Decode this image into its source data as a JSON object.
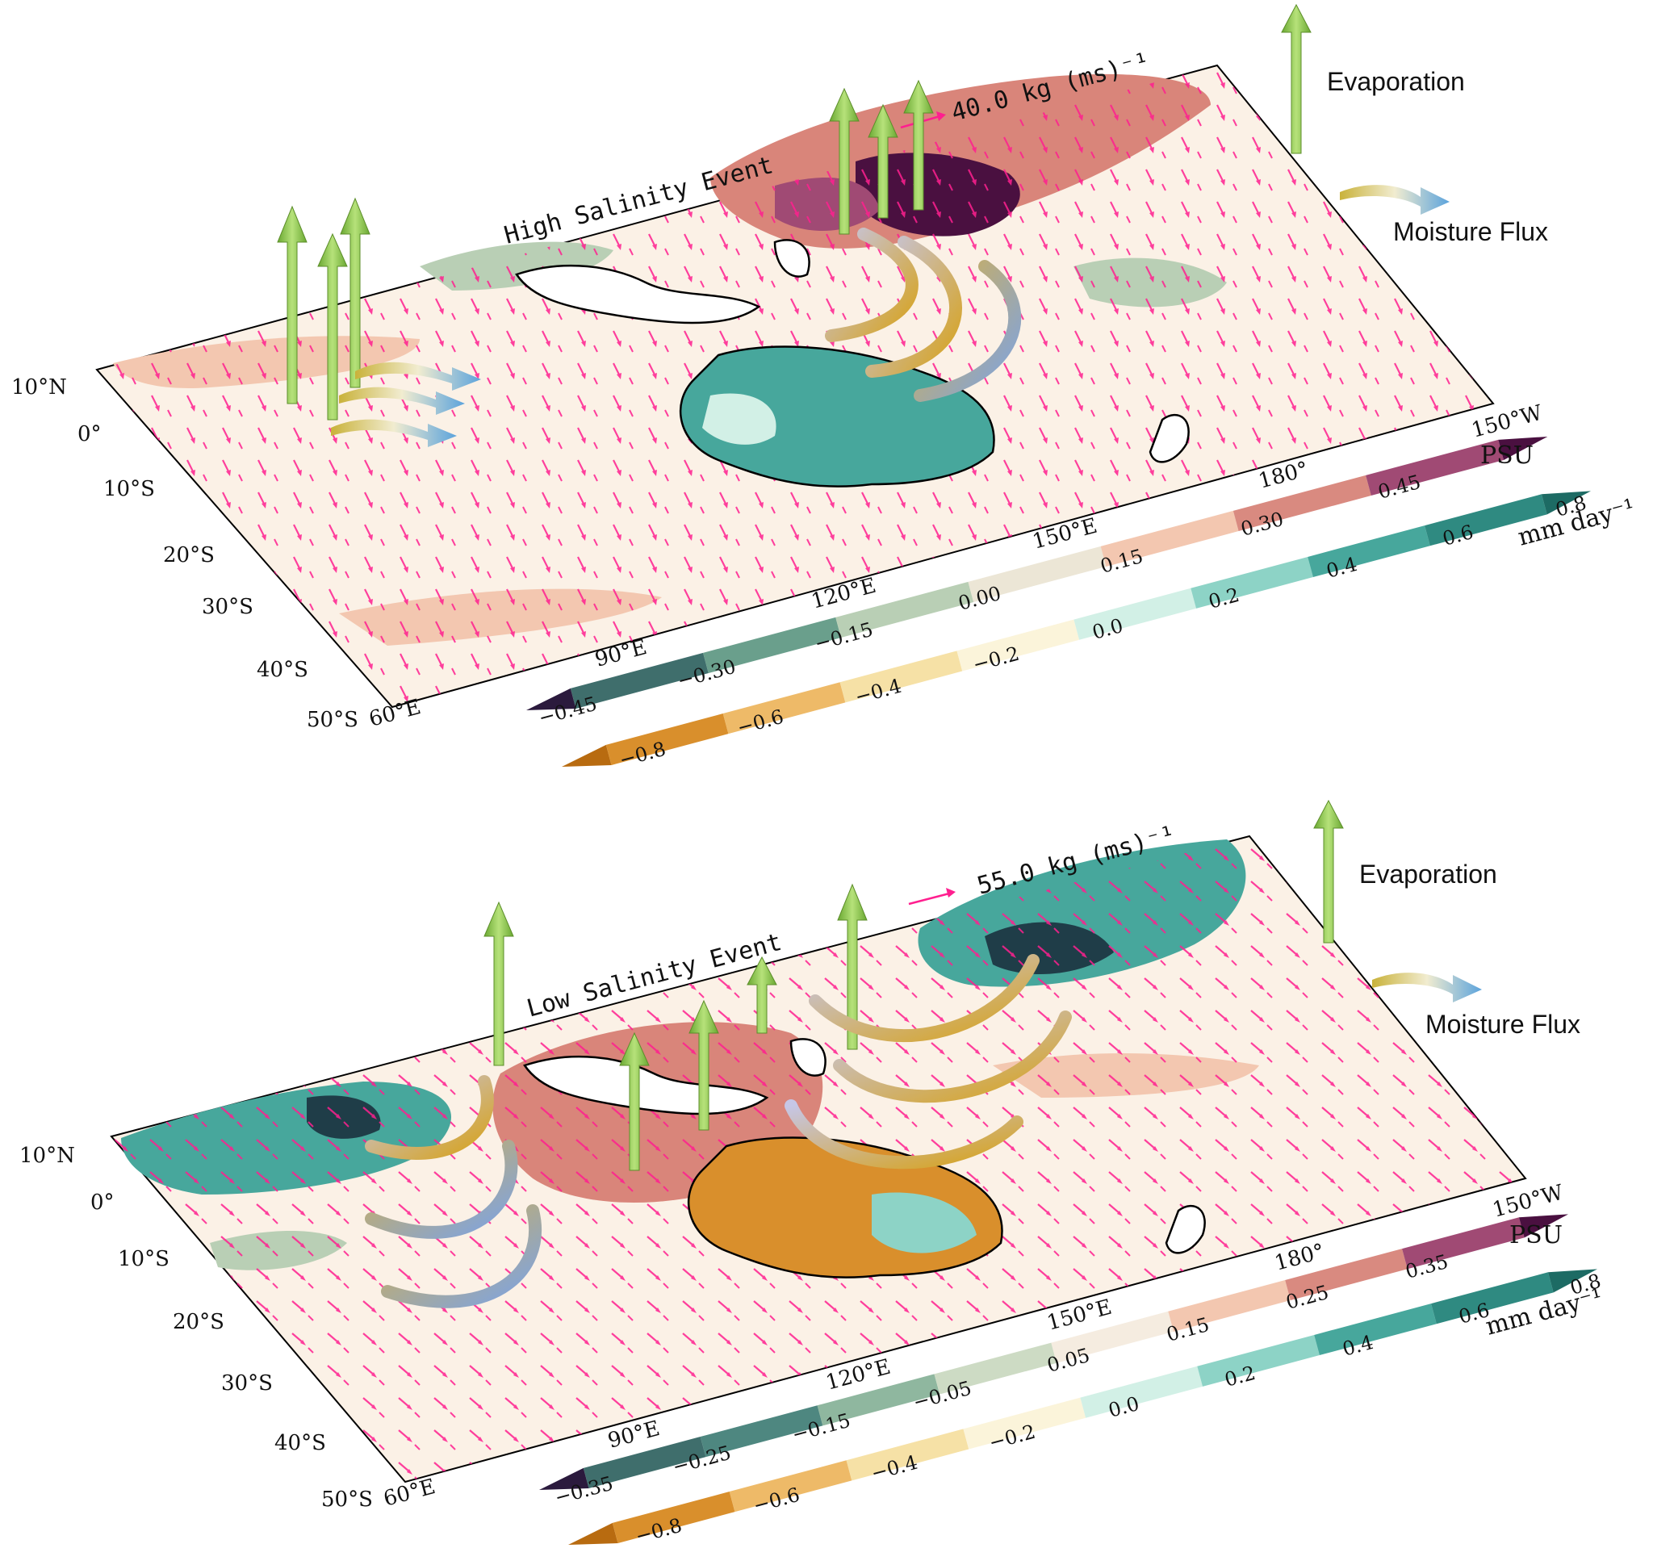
{
  "panels": [
    {
      "id": "top",
      "title": "High Salinity Event",
      "ref_vector_label": "40.0 kg (ms)⁻¹",
      "lat_labels": [
        "10°N",
        "0°",
        "10°S",
        "20°S",
        "30°S",
        "40°S",
        "50°S"
      ],
      "lon_labels": [
        "60°E",
        "90°E",
        "120°E",
        "150°E",
        "180°",
        "150°W"
      ],
      "psu_unit": "PSU",
      "psu_ticks": [
        "−0.45",
        "−0.30",
        "−0.15",
        "0.00",
        "0.15",
        "0.30",
        "0.45"
      ],
      "evap_unit": "mm day⁻¹",
      "evap_ticks": [
        "−0.8",
        "−0.6",
        "−0.4",
        "−0.2",
        "0.0",
        "0.2",
        "0.4",
        "0.6",
        "0.8"
      ],
      "legend": {
        "evaporation": "Evaporation",
        "moisture_flux": "Moisture Flux"
      }
    },
    {
      "id": "bottom",
      "title": "Low Salinity Event",
      "ref_vector_label": "55.0 kg (ms)⁻¹",
      "lat_labels": [
        "10°N",
        "0°",
        "10°S",
        "20°S",
        "30°S",
        "40°S",
        "50°S"
      ],
      "lon_labels": [
        "60°E",
        "90°E",
        "120°E",
        "150°E",
        "180°",
        "150°W"
      ],
      "psu_unit": "PSU",
      "psu_ticks": [
        "−0.35",
        "−0.25",
        "−0.15",
        "−0.05",
        "0.05",
        "0.15",
        "0.25",
        "0.35"
      ],
      "evap_unit": "mm day⁻¹",
      "evap_ticks": [
        "−0.8",
        "−0.6",
        "−0.4",
        "−0.2",
        "0.0",
        "0.2",
        "0.4",
        "0.6",
        "0.8"
      ],
      "legend": {
        "evaporation": "Evaporation",
        "moisture_flux": "Moisture Flux"
      }
    }
  ],
  "colors": {
    "psu_scale": [
      "#2b1a3d",
      "#3f6e6c",
      "#6a9f8c",
      "#b9cfb5",
      "#ece6d6",
      "#f3c7b0",
      "#d98a80",
      "#a04a74",
      "#4a1040"
    ],
    "evap_scale": [
      "#b86b10",
      "#d98f2c",
      "#eeba68",
      "#f6e1a6",
      "#fbf4da",
      "#d2f0e6",
      "#8dd3c6",
      "#47a79c",
      "#1d6b64"
    ],
    "vector": "#ff1f8f",
    "evaporation_arrow": "#8fcf4a",
    "land_outline": "#000000"
  }
}
